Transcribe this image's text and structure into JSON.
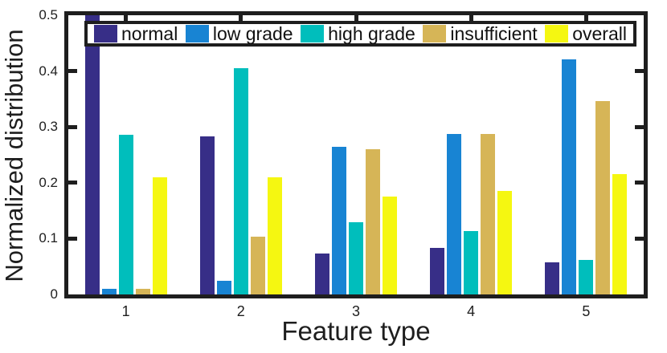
{
  "chart_data": {
    "type": "bar",
    "title": "",
    "xlabel": "Feature type",
    "ylabel": "Normalized distribution",
    "categories": [
      "1",
      "2",
      "3",
      "4",
      "5"
    ],
    "series": [
      {
        "name": "normal",
        "color": "#372E87",
        "values": [
          0.5,
          0.283,
          0.073,
          0.084,
          0.058
        ]
      },
      {
        "name": "low grade",
        "color": "#1884D3",
        "values": [
          0.01,
          0.025,
          0.265,
          0.288,
          0.421
        ]
      },
      {
        "name": "high grade",
        "color": "#00BEBC",
        "values": [
          0.286,
          0.405,
          0.13,
          0.114,
          0.062
        ]
      },
      {
        "name": "insufficient",
        "color": "#D6B557",
        "values": [
          0.01,
          0.104,
          0.26,
          0.288,
          0.347
        ]
      },
      {
        "name": "overall",
        "color": "#F5F711",
        "values": [
          0.21,
          0.21,
          0.176,
          0.185,
          0.215
        ]
      }
    ],
    "ylim": [
      0,
      0.5
    ],
    "yticks": [
      "0",
      "0.1",
      "0.2",
      "0.3",
      "0.4",
      "0.5"
    ],
    "legend_position": "top-inside",
    "grid": false,
    "axis_color": "#1e1e1e",
    "background_color": "#ffffff"
  }
}
